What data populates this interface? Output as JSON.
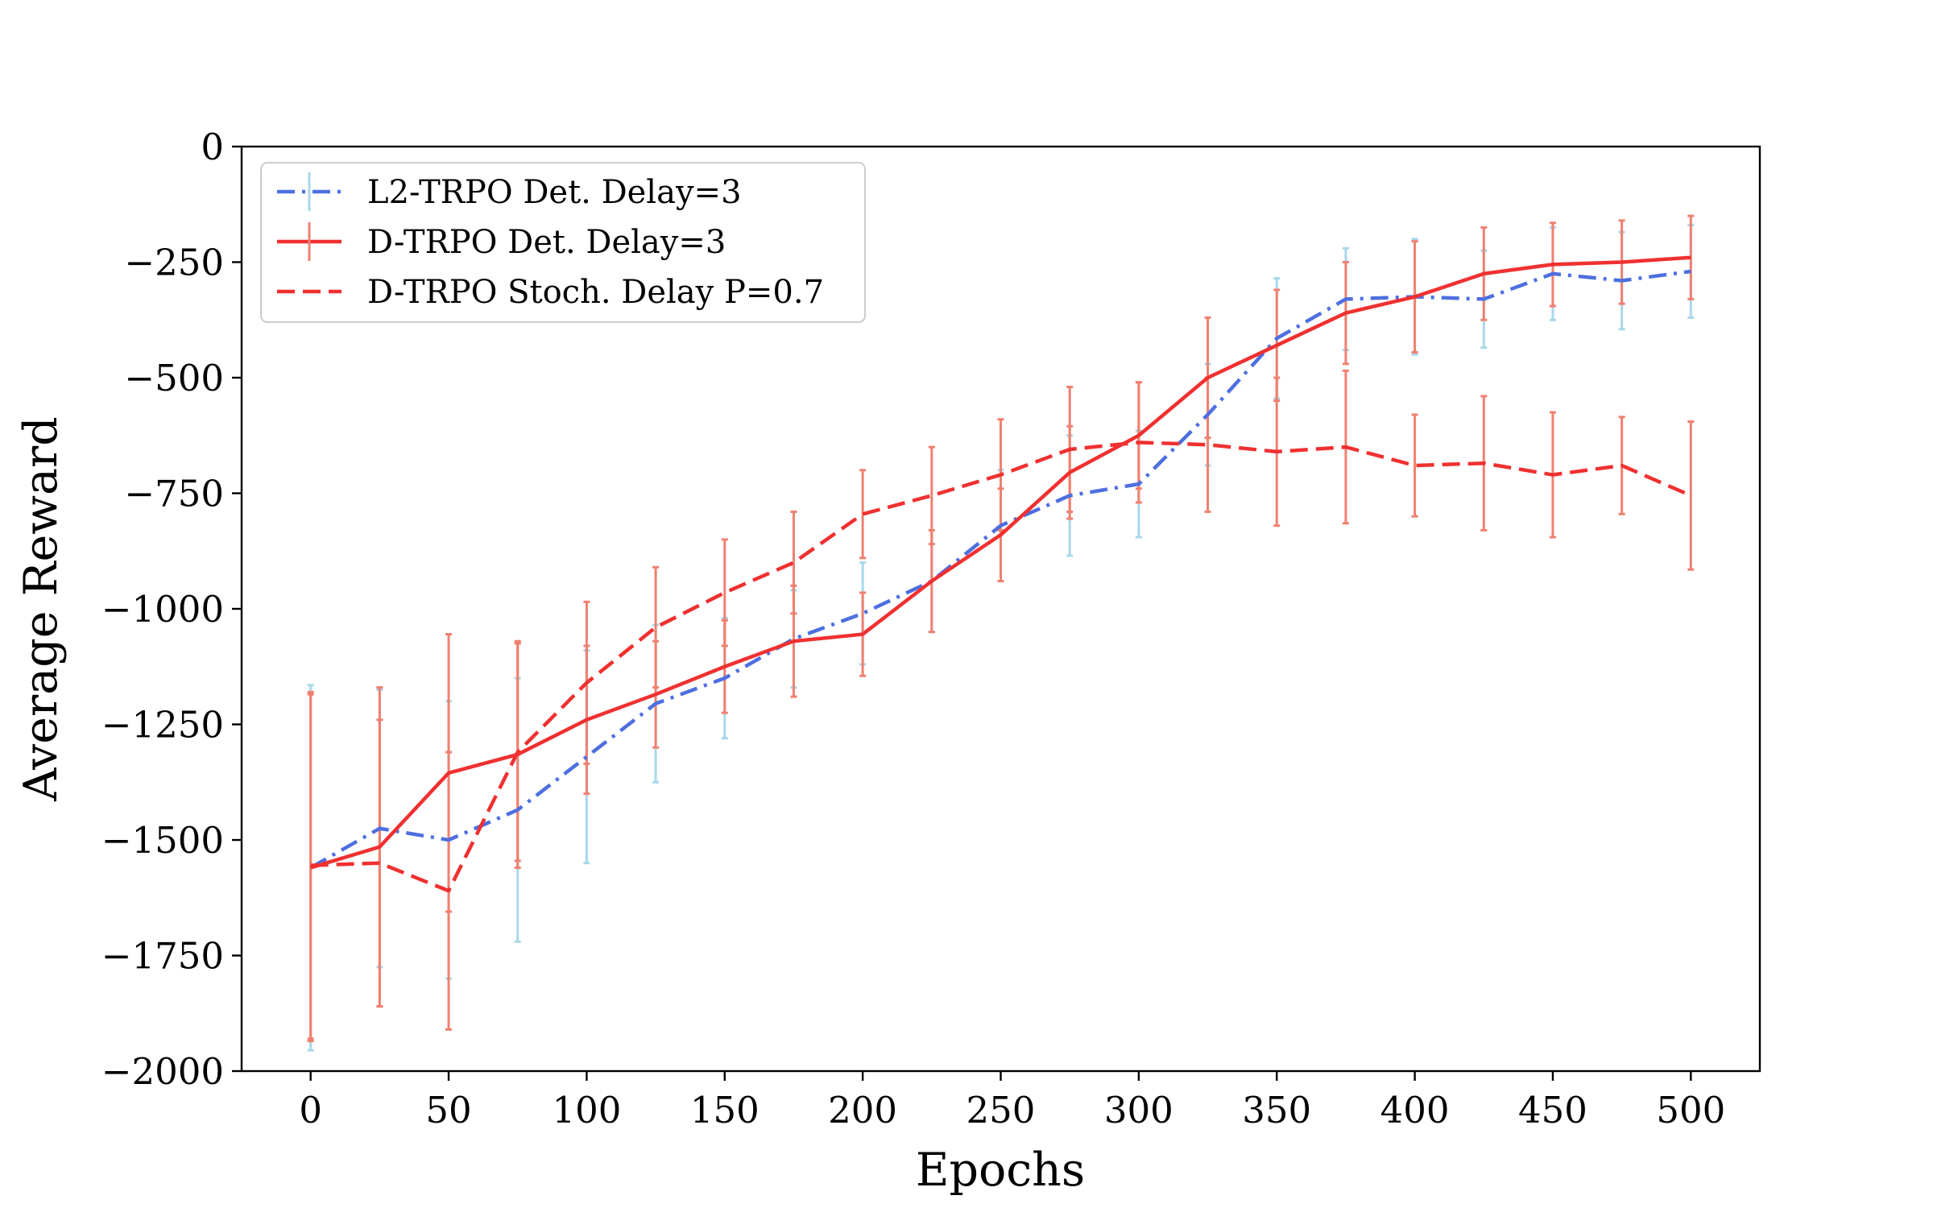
{
  "chart_data": {
    "type": "line",
    "title": "",
    "xlabel": "Epochs",
    "ylabel": "Average Reward",
    "xlim": [
      -25,
      525
    ],
    "ylim": [
      -2000,
      0
    ],
    "xticks": [
      0,
      50,
      100,
      150,
      200,
      250,
      300,
      350,
      400,
      450,
      500
    ],
    "yticks": [
      0,
      -250,
      -500,
      -750,
      -1000,
      -1250,
      -1500,
      -1750,
      -2000
    ],
    "xtick_labels": [
      "0",
      "50",
      "100",
      "150",
      "200",
      "250",
      "300",
      "350",
      "400",
      "450",
      "500"
    ],
    "ytick_labels": [
      "0",
      "−250",
      "−500",
      "−750",
      "−1000",
      "−1250",
      "−1500",
      "−1750",
      "−2000"
    ],
    "grid": false,
    "legend_position": "upper-left",
    "x": [
      0,
      25,
      50,
      75,
      100,
      125,
      150,
      175,
      200,
      225,
      250,
      275,
      300,
      325,
      350,
      375,
      400,
      425,
      450,
      475,
      500
    ],
    "series": [
      {
        "name": "L2-TRPO Det. Delay=3",
        "color": "#4e6fe0",
        "error_color": "#a8d8ea",
        "dash": "dashdot",
        "values": [
          -1560,
          -1475,
          -1500,
          -1435,
          -1320,
          -1205,
          -1150,
          -1065,
          -1010,
          -940,
          -820,
          -755,
          -730,
          -580,
          -415,
          -330,
          -325,
          -330,
          -275,
          -290,
          -270
        ],
        "errors": [
          395,
          300,
          300,
          285,
          230,
          170,
          130,
          105,
          110,
          110,
          120,
          130,
          115,
          110,
          130,
          110,
          125,
          105,
          100,
          105,
          100
        ]
      },
      {
        "name": "D-TRPO Det. Delay=3",
        "color": "#f03030",
        "error_color": "#f08070",
        "dash": "solid",
        "values": [
          -1560,
          -1515,
          -1355,
          -1315,
          -1240,
          -1185,
          -1125,
          -1070,
          -1055,
          -940,
          -840,
          -705,
          -625,
          -500,
          -430,
          -360,
          -325,
          -275,
          -255,
          -250,
          -240
        ],
        "errors": [
          375,
          345,
          300,
          245,
          160,
          115,
          100,
          120,
          90,
          110,
          100,
          100,
          115,
          130,
          120,
          110,
          120,
          100,
          90,
          90,
          90
        ]
      },
      {
        "name": "D-TRPO Stoch. Delay P=0.7",
        "color": "#f03030",
        "error_color": "#f08070",
        "dash": "dashed",
        "values": [
          -1555,
          -1550,
          -1610,
          -1310,
          -1160,
          -1040,
          -965,
          -900,
          -795,
          -755,
          -710,
          -655,
          -640,
          -645,
          -660,
          -650,
          -690,
          -685,
          -710,
          -690,
          -755
        ],
        "errors": [
          375,
          310,
          300,
          235,
          175,
          130,
          115,
          110,
          95,
          105,
          120,
          135,
          130,
          145,
          160,
          165,
          110,
          145,
          135,
          105,
          160
        ]
      }
    ]
  }
}
